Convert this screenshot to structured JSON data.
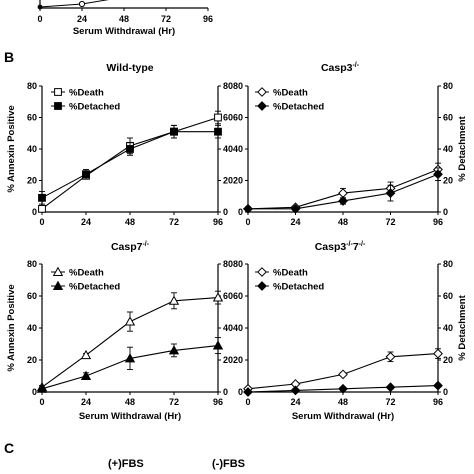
{
  "section_labels": {
    "B": "B",
    "C": "C"
  },
  "top_strip": {
    "x_ticks": [
      "0",
      "24",
      "48",
      "72",
      "96"
    ],
    "xlabel": "Serum Withdrawal (Hr)"
  },
  "fbs_labels": {
    "plus": "(+)FBS",
    "minus": "(-)FBS"
  },
  "shared_labels": {
    "left_axis": "% Annexin Positive",
    "right_axis": "% Detachment",
    "xlabel": "Serum Withdrawal (Hr)"
  },
  "chart_data": [
    {
      "type": "line",
      "title": "Wild-type",
      "title_sup": "",
      "x": [
        0,
        24,
        48,
        72,
        96
      ],
      "xlim": [
        0,
        96
      ],
      "ylim": [
        0,
        80
      ],
      "y_ticks": [
        0,
        20,
        40,
        60,
        80
      ],
      "y2lim": [
        0,
        80
      ],
      "y2_ticks": [
        0,
        20,
        40,
        60,
        80
      ],
      "xlabel": "",
      "ylabel": "% Annexin Positive",
      "y2label": "",
      "legend": "top-left",
      "series": [
        {
          "name": "%Death",
          "marker": "open-square",
          "values": [
            2,
            23,
            42,
            51,
            60
          ],
          "errors": [
            2,
            2,
            5,
            4,
            4
          ]
        },
        {
          "name": "%Detached",
          "marker": "filled-square",
          "values": [
            9,
            24,
            40,
            51,
            51
          ],
          "errors": [
            4,
            3,
            4,
            4,
            4
          ]
        }
      ]
    },
    {
      "type": "line",
      "title": "Casp3",
      "title_sup": "-/-",
      "x": [
        0,
        24,
        48,
        72,
        96
      ],
      "xlim": [
        0,
        96
      ],
      "ylim": [
        0,
        80
      ],
      "y_ticks": [
        0,
        20,
        40,
        60,
        80
      ],
      "y2lim": [
        0,
        80
      ],
      "y2_ticks": [
        0,
        20,
        40,
        60,
        80
      ],
      "xlabel": "",
      "ylabel": "",
      "y2label": "% Detachment",
      "legend": "top-left",
      "series": [
        {
          "name": "%Death",
          "marker": "open-diamond",
          "values": [
            2,
            3,
            12,
            15,
            27
          ],
          "errors": [
            1,
            1,
            3,
            4,
            4
          ]
        },
        {
          "name": "%Detached",
          "marker": "filled-diamond",
          "values": [
            2,
            2,
            7,
            12,
            24
          ],
          "errors": [
            1,
            1,
            2,
            5,
            4
          ]
        }
      ]
    },
    {
      "type": "line",
      "title": "Casp7",
      "title_sup": "-/-",
      "x": [
        0,
        24,
        48,
        72,
        96
      ],
      "xlim": [
        0,
        96
      ],
      "ylim": [
        0,
        80
      ],
      "y_ticks": [
        0,
        20,
        40,
        60,
        80
      ],
      "y2lim": [
        0,
        80
      ],
      "y2_ticks": [
        0,
        20,
        40,
        60,
        80
      ],
      "xlabel": "Serum Withdrawal (Hr)",
      "ylabel": "% Annexin Positive",
      "y2label": "",
      "legend": "top-left",
      "series": [
        {
          "name": "%Death",
          "marker": "open-triangle",
          "values": [
            3,
            23,
            44,
            57,
            59
          ],
          "errors": [
            1,
            1,
            6,
            5,
            4
          ]
        },
        {
          "name": "%Detached",
          "marker": "filled-triangle",
          "values": [
            2,
            10,
            21,
            26,
            29
          ],
          "errors": [
            1,
            2,
            7,
            4,
            5
          ]
        }
      ]
    },
    {
      "type": "line",
      "title": "Casp3",
      "title_sup": "-/-",
      "title_mid": "7",
      "title_sup2": "-/-",
      "x": [
        0,
        24,
        48,
        72,
        96
      ],
      "xlim": [
        0,
        96
      ],
      "ylim": [
        0,
        80
      ],
      "y_ticks": [
        0,
        20,
        40,
        60,
        80
      ],
      "y2lim": [
        0,
        80
      ],
      "y2_ticks": [
        0,
        20,
        40,
        60,
        80
      ],
      "xlabel": "Serum Withdrawal (Hr)",
      "ylabel": "",
      "y2label": "% Detachment",
      "legend": "top-left",
      "series": [
        {
          "name": "%Death",
          "marker": "open-diamond",
          "values": [
            2,
            5,
            11,
            22,
            24
          ],
          "errors": [
            1,
            1,
            1,
            3,
            3
          ]
        },
        {
          "name": "%Detached",
          "marker": "filled-diamond",
          "values": [
            0,
            1,
            2,
            3,
            4
          ],
          "errors": [
            0.5,
            0.5,
            0.5,
            0.5,
            0.5
          ]
        }
      ]
    }
  ]
}
